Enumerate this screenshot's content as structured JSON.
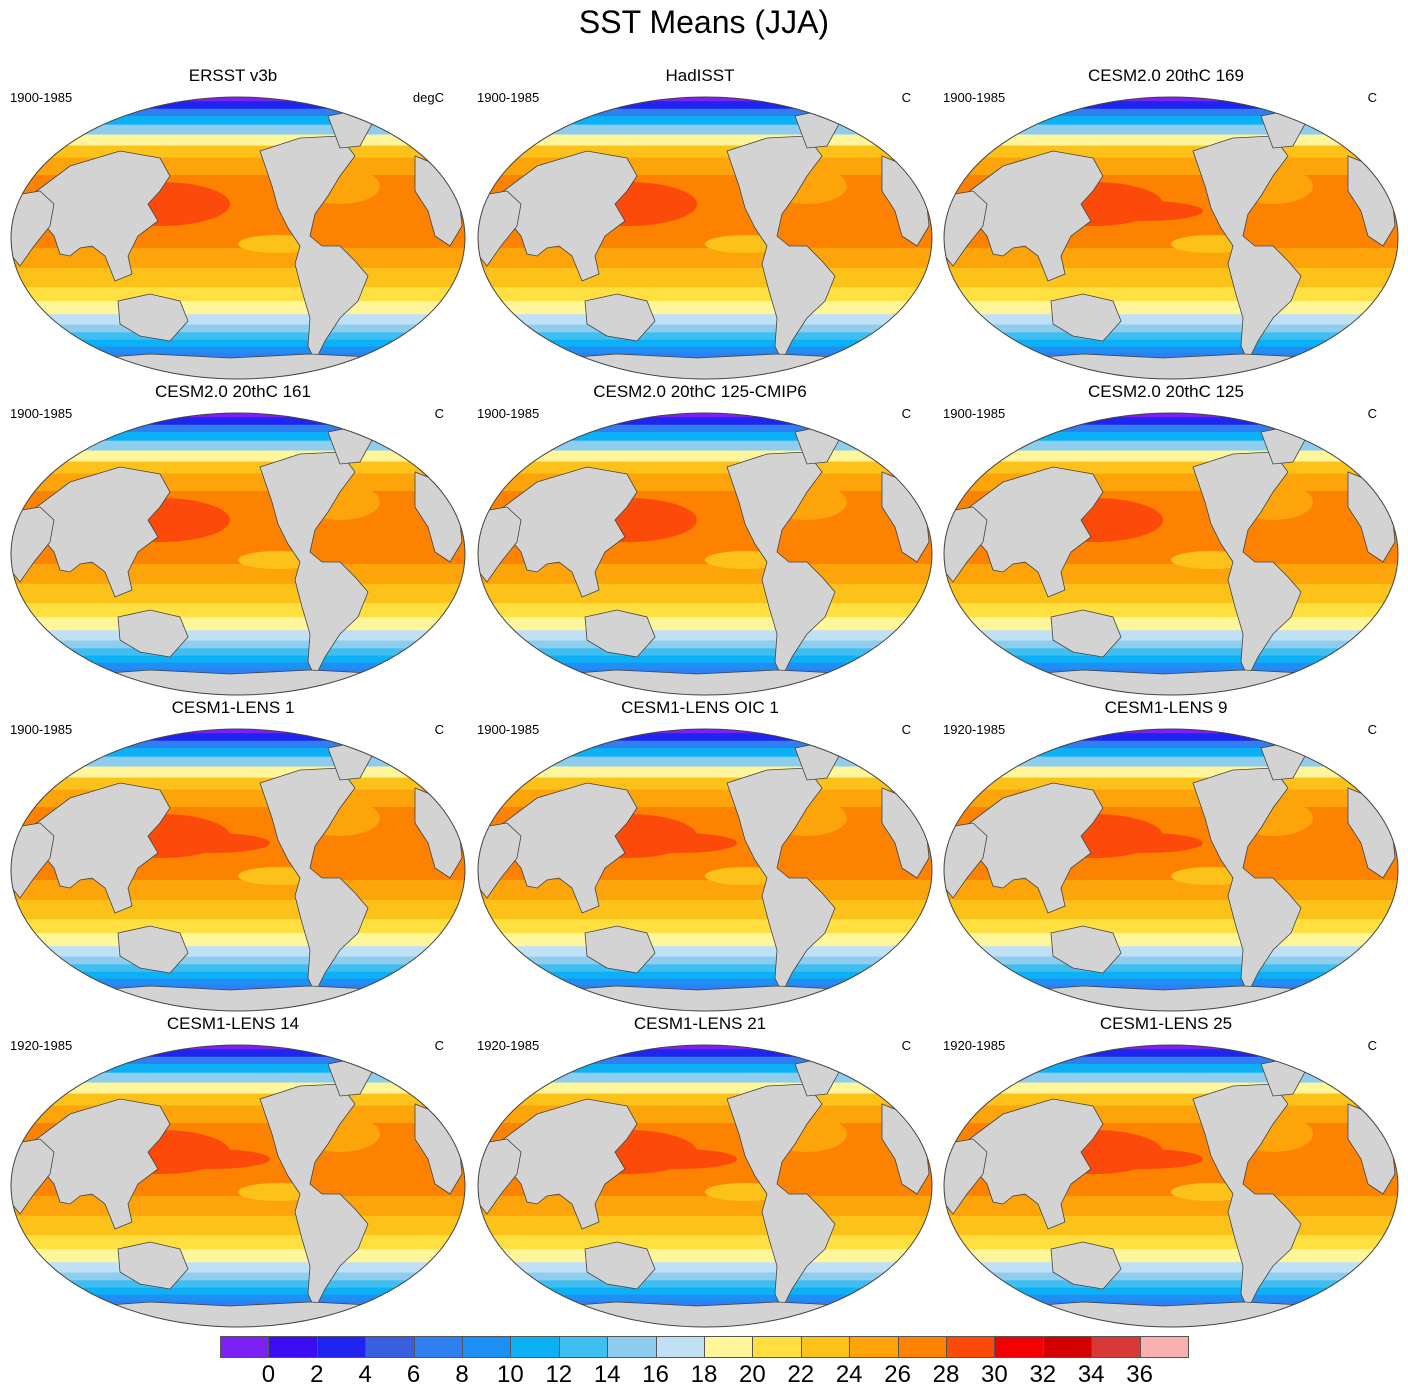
{
  "figure": {
    "title": "SST Means (JJA)",
    "panels": [
      {
        "title": "ERSST v3b",
        "period": "1900-1985",
        "units": "degC",
        "variant": 0
      },
      {
        "title": "HadISST",
        "period": "1900-1985",
        "units": "C",
        "variant": 1
      },
      {
        "title": "CESM2.0 20thC 169",
        "period": "1900-1985",
        "units": "C",
        "variant": 2
      },
      {
        "title": "CESM2.0 20thC 161",
        "period": "1900-1985",
        "units": "C",
        "variant": 1
      },
      {
        "title": "CESM2.0 20thC 125-CMIP6",
        "period": "1900-1985",
        "units": "C",
        "variant": 1
      },
      {
        "title": "CESM2.0 20thC 125",
        "period": "1900-1985",
        "units": "C",
        "variant": 1
      },
      {
        "title": "CESM1-LENS 1",
        "period": "1900-1985",
        "units": "C",
        "variant": 2
      },
      {
        "title": "CESM1-LENS OIC 1",
        "period": "1900-1985",
        "units": "C",
        "variant": 2
      },
      {
        "title": "CESM1-LENS 9",
        "period": "1920-1985",
        "units": "C",
        "variant": 2
      },
      {
        "title": "CESM1-LENS 14",
        "period": "1920-1985",
        "units": "C",
        "variant": 2
      },
      {
        "title": "CESM1-LENS 21",
        "period": "1920-1985",
        "units": "C",
        "variant": 2
      },
      {
        "title": "CESM1-LENS 25",
        "period": "1920-1985",
        "units": "C",
        "variant": 2
      }
    ]
  },
  "colorbar": {
    "labels": [
      "0",
      "2",
      "4",
      "6",
      "8",
      "10",
      "12",
      "14",
      "16",
      "18",
      "20",
      "22",
      "24",
      "26",
      "28",
      "30",
      "32",
      "34",
      "36"
    ],
    "colors": [
      "#7b22f2",
      "#3c0cf5",
      "#1f24f0",
      "#3a5ee0",
      "#2f7ef2",
      "#1e90f5",
      "#0bb0f5",
      "#3fbef2",
      "#8fcdee",
      "#bfe0f5",
      "#fff59a",
      "#ffe040",
      "#fcc21a",
      "#fca40a",
      "#fc8200",
      "#fc4a0a",
      "#f50000",
      "#d40000",
      "#d83838",
      "#fab0b0"
    ],
    "land_color": "#d3d3d3",
    "outline_color": "#444444"
  }
}
